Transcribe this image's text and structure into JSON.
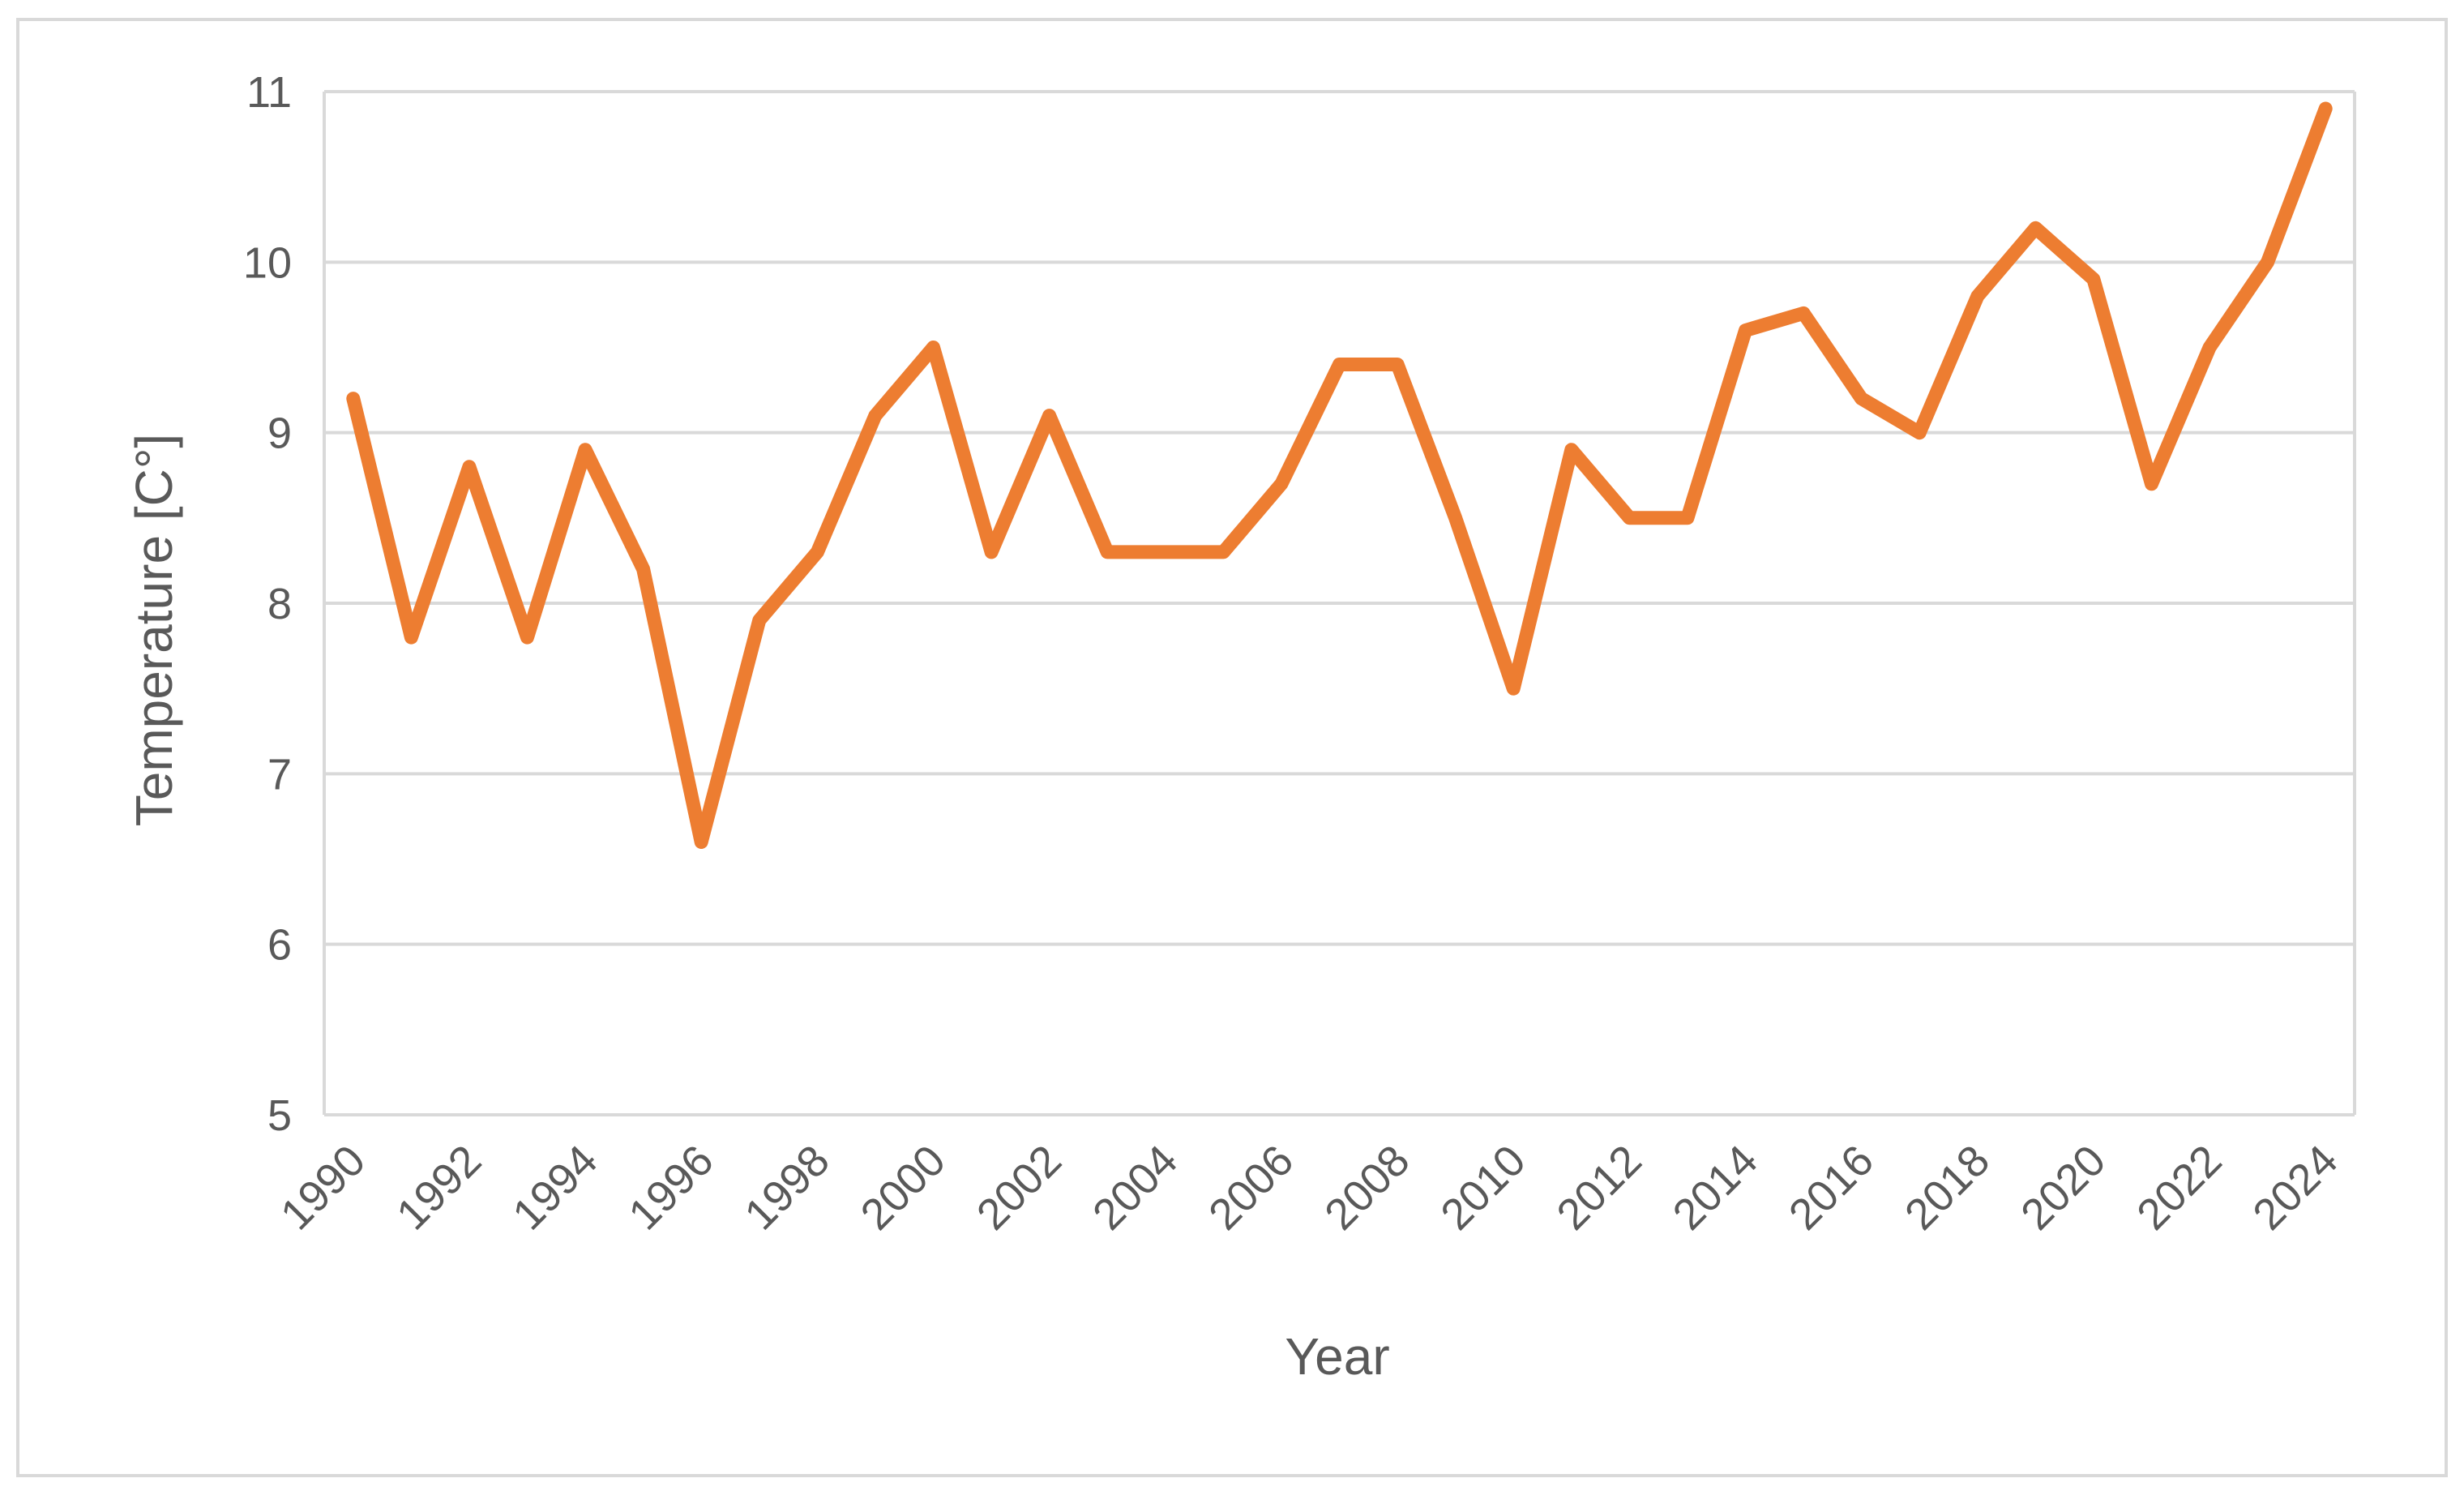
{
  "chart_data": {
    "type": "line",
    "title": "",
    "xlabel": "Year",
    "ylabel": "Temperature [C°]",
    "ylim": [
      5,
      11
    ],
    "yticks": [
      5,
      6,
      7,
      8,
      9,
      10,
      11
    ],
    "grid": true,
    "legend": "none",
    "x": [
      1990,
      1991,
      1992,
      1993,
      1994,
      1995,
      1996,
      1997,
      1998,
      1999,
      2000,
      2001,
      2002,
      2003,
      2004,
      2005,
      2006,
      2007,
      2008,
      2009,
      2010,
      2011,
      2012,
      2013,
      2014,
      2015,
      2016,
      2017,
      2018,
      2019,
      2020,
      2021,
      2022,
      2023,
      2024
    ],
    "xtick_labels": [
      "1990",
      "1992",
      "1994",
      "1996",
      "1998",
      "2000",
      "2002",
      "2004",
      "2006",
      "2008",
      "2010",
      "2012",
      "2014",
      "2016",
      "2018",
      "2020",
      "2022",
      "2024"
    ],
    "series": [
      {
        "values": [
          9.2,
          7.8,
          8.8,
          7.8,
          8.9,
          8.2,
          6.6,
          7.9,
          8.3,
          9.1,
          9.5,
          8.3,
          9.1,
          8.3,
          8.3,
          8.3,
          8.7,
          9.4,
          9.4,
          8.5,
          7.5,
          8.9,
          8.5,
          8.5,
          9.6,
          9.7,
          9.2,
          9.0,
          9.8,
          10.2,
          9.9,
          8.7,
          9.5,
          10.0,
          10.9
        ],
        "color": "#ed7d31"
      }
    ],
    "colors": {
      "grid": "#d9d9d9",
      "text": "#595959",
      "frame": "#d9d9d9"
    }
  }
}
